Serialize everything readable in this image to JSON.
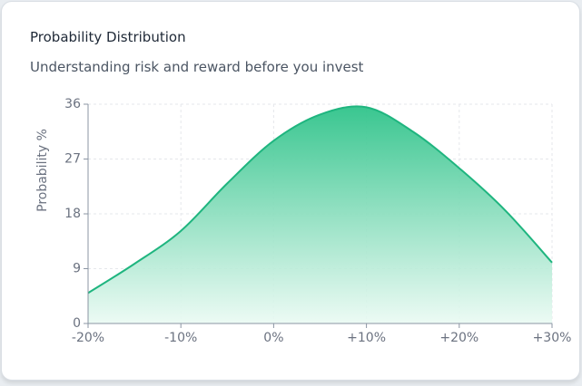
{
  "card": {
    "title": "Probability Distribution",
    "subtitle": "Understanding risk and reward before you invest"
  },
  "colors": {
    "line": "#1fb57f",
    "fill_top": "#2fc38a",
    "fill_bottom": "#eafaf3",
    "grid": "#e5e7eb",
    "axis": "#8b95a3"
  },
  "chart_data": {
    "type": "area",
    "title": "",
    "xlabel": "",
    "ylabel": "Probability %",
    "x_ticks": [
      "-20%",
      "-10%",
      "0%",
      "+10%",
      "+20%",
      "+30%"
    ],
    "x": [
      -20,
      -15,
      -10,
      -5,
      0,
      5,
      10,
      15,
      20,
      25,
      30
    ],
    "values": [
      5,
      9.8,
      15.2,
      23,
      30,
      34.3,
      35.5,
      31.5,
      25.5,
      18.5,
      10
    ],
    "xlim": [
      -20,
      30
    ],
    "ylim": [
      0,
      36
    ],
    "y_ticks": [
      0,
      9,
      18,
      27,
      36
    ],
    "grid": true,
    "legend": "none"
  }
}
